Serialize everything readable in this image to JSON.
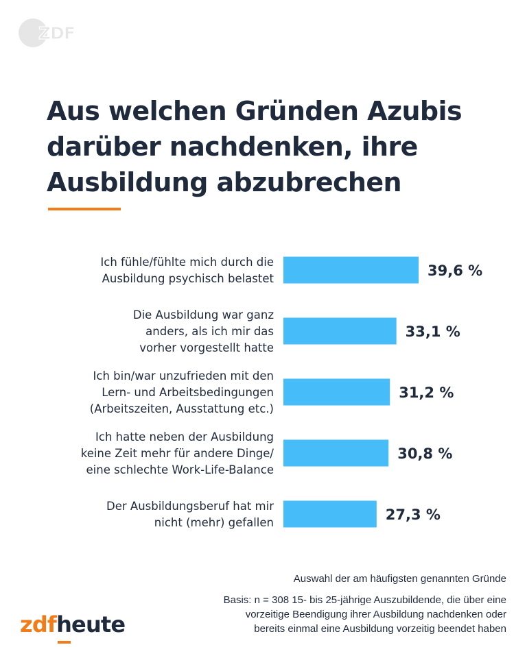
{
  "header": {
    "logo_text": "ZDF",
    "title_lines": [
      "Aus welchen Gründen Azubis",
      "darüber nachdenken, ihre",
      "Ausbildung abzubrechen"
    ]
  },
  "colors": {
    "bar": "#46bdf9",
    "accent": "#f07d1a",
    "text": "#1f2a3c",
    "logo_grey": "#e6e6e6"
  },
  "chart_data": {
    "type": "bar",
    "orientation": "horizontal",
    "title": "Aus welchen Gründen Azubis darüber nachdenken, ihre Ausbildung abzubrechen",
    "unit": "%",
    "categories": [
      [
        "Ich fühle/fühlte mich durch die",
        "Ausbildung psychisch belastet"
      ],
      [
        "Die Ausbildung war ganz",
        "anders, als ich mir das",
        "vorher vorgestellt hatte"
      ],
      [
        "Ich bin/war unzufrieden mit den",
        "Lern- und Arbeitsbedingungen",
        "(Arbeitszeiten, Ausstattung etc.)"
      ],
      [
        "Ich hatte neben der Ausbildung",
        "keine Zeit mehr für andere Dinge/",
        "eine schlechte Work-Life-Balance"
      ],
      [
        "Der Ausbildungsberuf hat mir",
        "nicht (mehr) gefallen"
      ]
    ],
    "values": [
      39.6,
      33.1,
      31.2,
      30.8,
      27.3
    ],
    "value_labels": [
      "39,6 %",
      "33,1 %",
      "31,2 %",
      "30,8 %",
      "27,3 %"
    ],
    "xlim": [
      0,
      40
    ],
    "grid": false,
    "legend": "none"
  },
  "footer": {
    "selection_note": "Auswahl der am häufigsten genannten Gründe",
    "basis_lines": [
      "Basis: n = 308 15- bis 25-jährige Auszubildende, die über eine",
      "vorzeitige Beendigung ihrer Ausbildung nachdenken oder",
      "bereits einmal eine Ausbildung vorzeitig beendet haben"
    ]
  },
  "brand": {
    "part1": "zdf",
    "part2": "heute"
  }
}
